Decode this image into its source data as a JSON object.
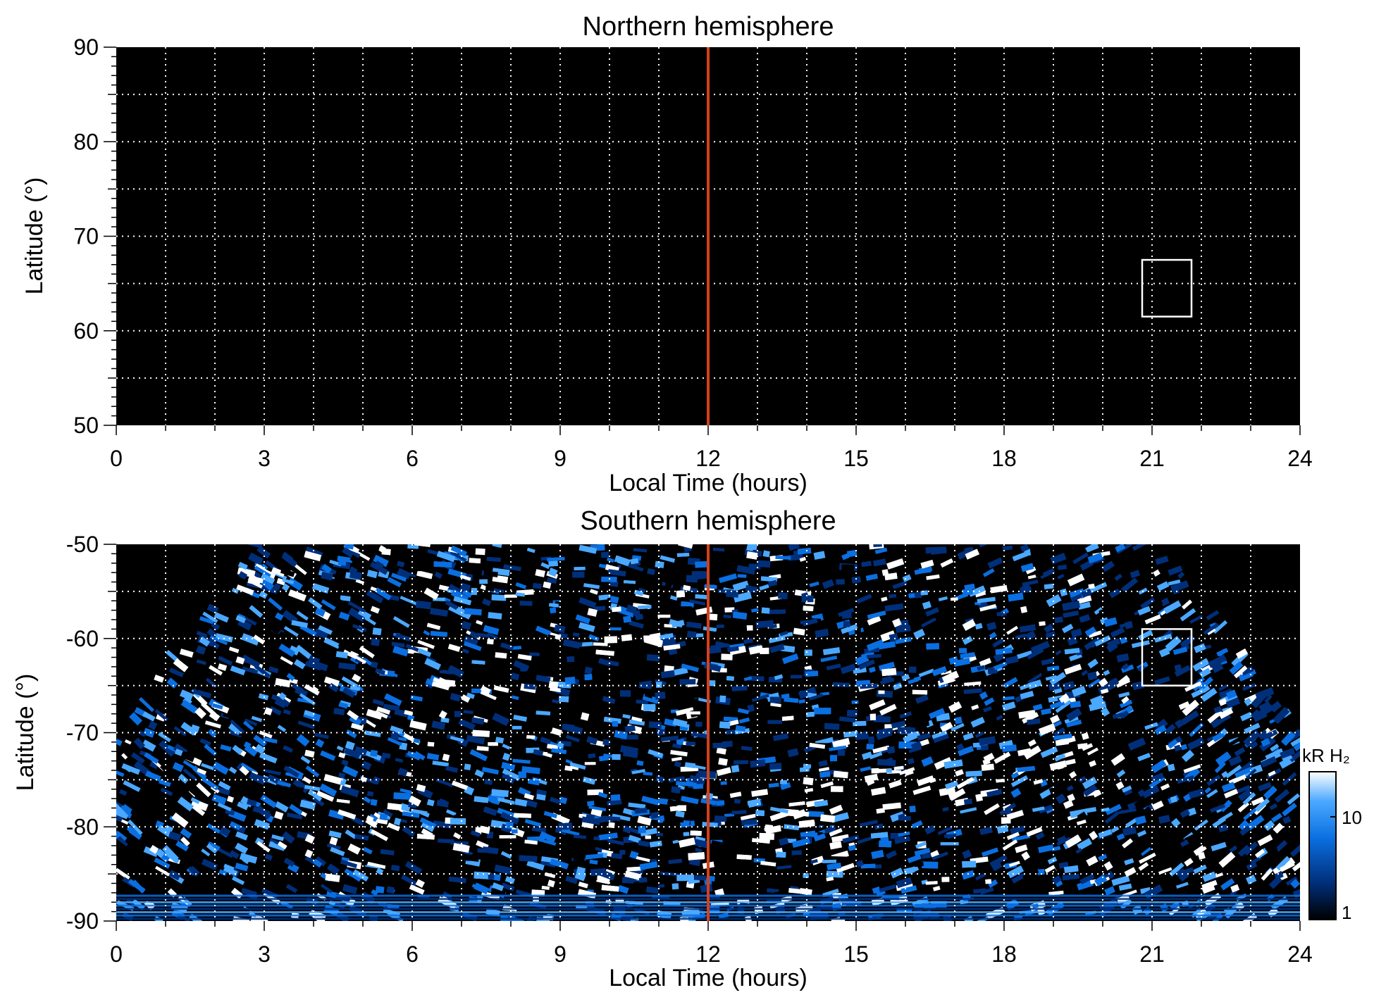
{
  "chart_data": [
    {
      "type": "heatmap",
      "title": "Northern hemisphere",
      "xlabel": "Local Time (hours)",
      "ylabel": "Latitude (°)",
      "xlim": [
        0,
        24
      ],
      "ylim": [
        50,
        90
      ],
      "x_ticks": [
        "0",
        "3",
        "6",
        "9",
        "12",
        "15",
        "18",
        "21",
        "24"
      ],
      "y_ticks": [
        "90",
        "80",
        "70",
        "60",
        "50"
      ],
      "grid": true,
      "background": "#000000",
      "marker_line": {
        "x": 12,
        "color": "#d2411c"
      },
      "box": {
        "x": [
          20.8,
          21.8
        ],
        "y": [
          61.5,
          67.5
        ],
        "color": "#ffffff"
      },
      "intensity": "none"
    },
    {
      "type": "heatmap",
      "title": "Southern hemisphere",
      "xlabel": "Local Time (hours)",
      "ylabel": "Latitude (°)",
      "xlim": [
        0,
        24
      ],
      "ylim": [
        -90,
        -50
      ],
      "x_ticks": [
        "0",
        "3",
        "6",
        "9",
        "12",
        "15",
        "18",
        "21",
        "24"
      ],
      "y_ticks": [
        "-50",
        "-60",
        "-70",
        "-80",
        "-90"
      ],
      "grid": true,
      "background": "#000000",
      "marker_line": {
        "x": 12,
        "color": "#d2411c"
      },
      "box": {
        "x": [
          20.8,
          21.8
        ],
        "y": [
          -65,
          -59
        ],
        "color": "#ffffff"
      },
      "coverage_edge_latitude": -70.5,
      "coverage_pole_latitude": -90,
      "bright_band": [
        {
          "x": 13.0,
          "y": -80.5
        },
        {
          "x": 14.5,
          "y": -77.0
        },
        {
          "x": 16.0,
          "y": -76.0
        },
        {
          "x": 17.5,
          "y": -74.5
        },
        {
          "x": 19.0,
          "y": -73.0
        },
        {
          "x": 20.5,
          "y": -71.5
        }
      ],
      "colorbar": {
        "label": "kR H₂",
        "ticks": [
          "10",
          "1"
        ],
        "scale": "log",
        "range": [
          1,
          30
        ],
        "colors": [
          "#000000",
          "#002f7a",
          "#0a6fe0",
          "#4aa8ff",
          "#ffffff"
        ]
      }
    }
  ]
}
